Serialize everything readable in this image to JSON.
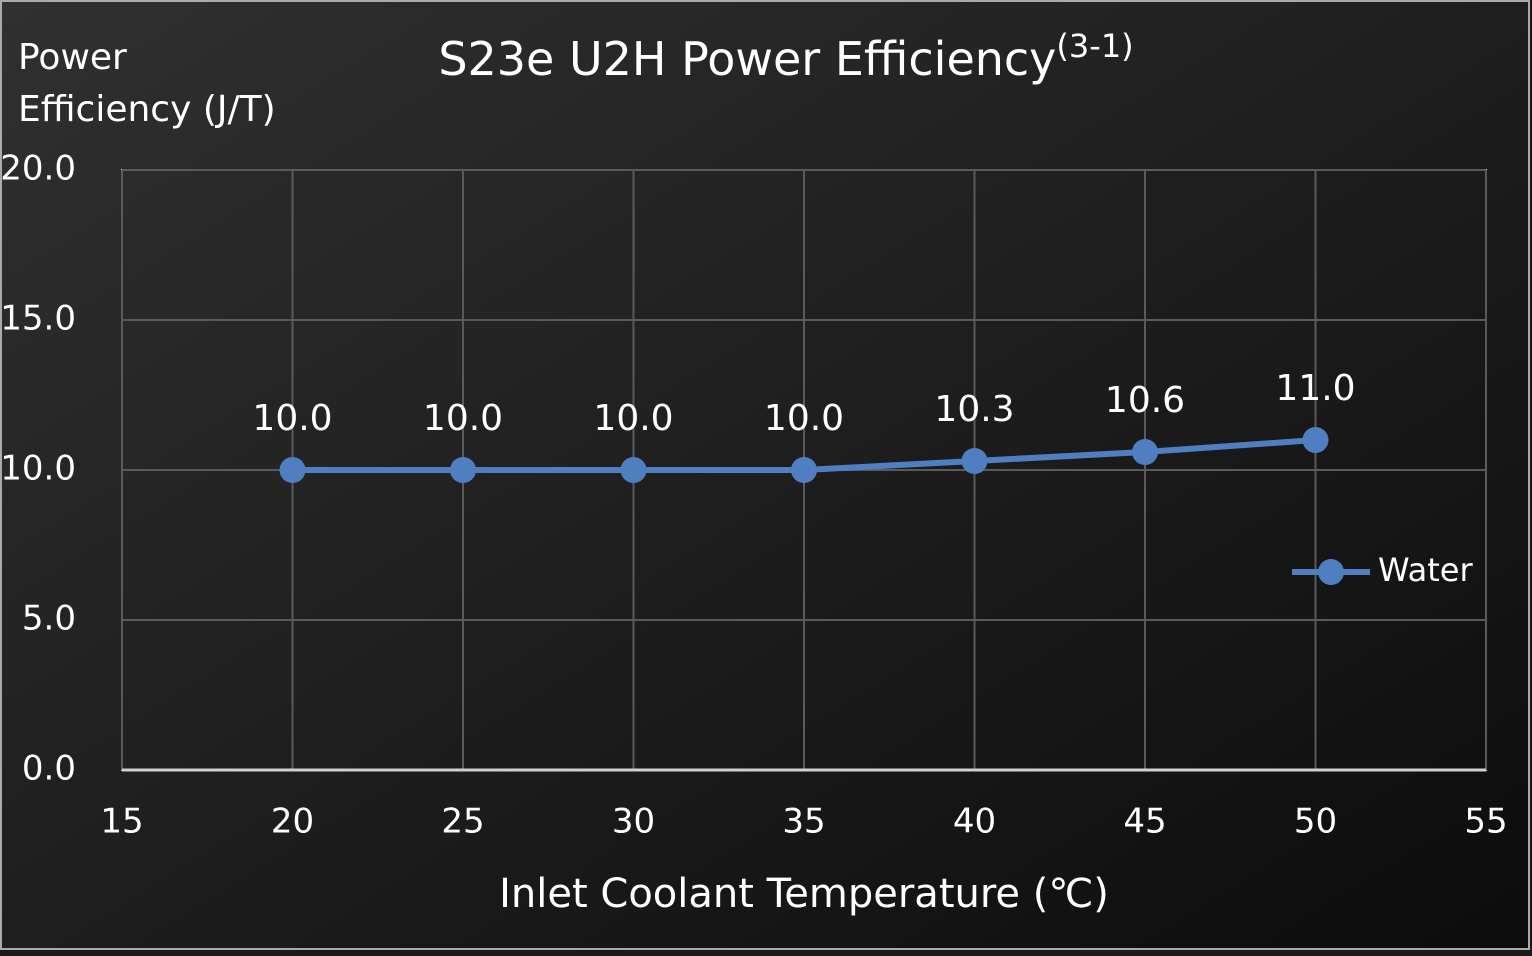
{
  "chart_data": {
    "type": "line",
    "title": "S23e U2H Power Efficiency",
    "title_superscript": "(3-1)",
    "y_label": "Power Efficiency (J/T)",
    "x_label": "Inlet Coolant Temperature (℃)",
    "x": [
      20,
      25,
      30,
      35,
      40,
      45,
      50
    ],
    "series": [
      {
        "name": "Water",
        "color": "#4f7fc0",
        "values": [
          10,
          10,
          10,
          10,
          10.3,
          10.6,
          11.0
        ],
        "value_labels": [
          "10.0",
          "10.0",
          "10.0",
          "10.0",
          "10.3",
          "10.6",
          "11.0"
        ]
      }
    ],
    "xlim": [
      15,
      55
    ],
    "xticks": [
      15,
      20,
      25,
      30,
      35,
      40,
      45,
      50,
      55
    ],
    "ylim": [
      0,
      20
    ],
    "yticks": [
      {
        "value": 0,
        "label": "0.0"
      },
      {
        "value": 5,
        "label": "5.0"
      },
      {
        "value": 10,
        "label": "10.0"
      },
      {
        "value": 15,
        "label": "15.0"
      },
      {
        "value": 20,
        "label": "20.0"
      }
    ],
    "grid": true,
    "legend": "right"
  }
}
